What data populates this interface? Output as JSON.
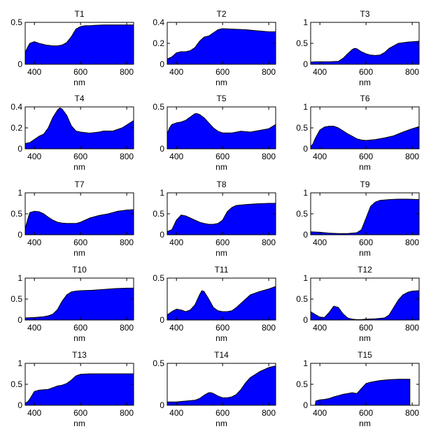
{
  "figure": {
    "fill_color": "#0000ff",
    "edge_color": "#000000",
    "background": "#ffffff"
  },
  "chart_data": [
    {
      "type": "area",
      "title": "T1",
      "xlabel": "nm",
      "ylabel": "",
      "xlim": [
        360,
        830
      ],
      "ylim": [
        0,
        0.5
      ],
      "xticks": [
        400,
        600,
        800
      ],
      "yticks": [
        0,
        0.5
      ],
      "ytick_labels": [
        "0",
        "0.5"
      ],
      "x": [
        360,
        370,
        380,
        400,
        420,
        450,
        480,
        500,
        520,
        540,
        560,
        580,
        600,
        620,
        640,
        660,
        700,
        750,
        800,
        830
      ],
      "values": [
        0.14,
        0.2,
        0.25,
        0.27,
        0.25,
        0.23,
        0.22,
        0.22,
        0.23,
        0.26,
        0.33,
        0.42,
        0.45,
        0.46,
        0.46,
        0.465,
        0.47,
        0.47,
        0.47,
        0.47
      ]
    },
    {
      "type": "area",
      "title": "T2",
      "xlabel": "nm",
      "ylabel": "",
      "xlim": [
        360,
        830
      ],
      "ylim": [
        0,
        0.4
      ],
      "xticks": [
        400,
        600,
        800
      ],
      "yticks": [
        0,
        0.2,
        0.4
      ],
      "ytick_labels": [
        "0",
        "0.2",
        "0.4"
      ],
      "x": [
        360,
        380,
        400,
        420,
        440,
        460,
        480,
        500,
        520,
        540,
        560,
        580,
        600,
        650,
        700,
        750,
        800,
        830
      ],
      "values": [
        0.05,
        0.07,
        0.11,
        0.12,
        0.12,
        0.13,
        0.16,
        0.22,
        0.26,
        0.27,
        0.3,
        0.33,
        0.34,
        0.335,
        0.33,
        0.32,
        0.31,
        0.31
      ]
    },
    {
      "type": "area",
      "title": "T3",
      "xlabel": "nm",
      "ylabel": "",
      "xlim": [
        360,
        830
      ],
      "ylim": [
        0,
        1
      ],
      "xticks": [
        400,
        600,
        800
      ],
      "yticks": [
        0,
        0.5,
        1
      ],
      "ytick_labels": [
        "0",
        "0.5",
        "1"
      ],
      "x": [
        360,
        380,
        400,
        440,
        480,
        500,
        520,
        540,
        550,
        560,
        580,
        600,
        620,
        640,
        660,
        680,
        700,
        740,
        780,
        830
      ],
      "values": [
        0.05,
        0.06,
        0.06,
        0.06,
        0.07,
        0.14,
        0.25,
        0.35,
        0.38,
        0.37,
        0.3,
        0.25,
        0.22,
        0.21,
        0.22,
        0.28,
        0.38,
        0.5,
        0.53,
        0.55
      ]
    },
    {
      "type": "area",
      "title": "T4",
      "xlabel": "nm",
      "ylabel": "",
      "xlim": [
        360,
        830
      ],
      "ylim": [
        0,
        0.4
      ],
      "xticks": [
        400,
        600,
        800
      ],
      "yticks": [
        0,
        0.2,
        0.4
      ],
      "ytick_labels": [
        "0",
        "0.2",
        "0.4"
      ],
      "x": [
        360,
        380,
        400,
        420,
        440,
        460,
        480,
        500,
        510,
        520,
        540,
        560,
        580,
        600,
        640,
        680,
        700,
        740,
        780,
        830
      ],
      "values": [
        0.05,
        0.06,
        0.09,
        0.12,
        0.14,
        0.2,
        0.3,
        0.37,
        0.39,
        0.38,
        0.32,
        0.22,
        0.17,
        0.16,
        0.15,
        0.16,
        0.17,
        0.17,
        0.2,
        0.27
      ]
    },
    {
      "type": "area",
      "title": "T5",
      "xlabel": "nm",
      "ylabel": "",
      "xlim": [
        360,
        830
      ],
      "ylim": [
        0,
        0.5
      ],
      "xticks": [
        400,
        600,
        800
      ],
      "yticks": [
        0,
        0.5
      ],
      "ytick_labels": [
        "0",
        "0.5"
      ],
      "x": [
        360,
        370,
        380,
        400,
        420,
        440,
        460,
        480,
        490,
        500,
        520,
        540,
        560,
        580,
        600,
        640,
        680,
        720,
        760,
        800,
        830
      ],
      "values": [
        0.18,
        0.25,
        0.29,
        0.31,
        0.32,
        0.34,
        0.38,
        0.42,
        0.42,
        0.41,
        0.37,
        0.31,
        0.25,
        0.21,
        0.19,
        0.19,
        0.21,
        0.2,
        0.22,
        0.24,
        0.29
      ]
    },
    {
      "type": "area",
      "title": "T6",
      "xlabel": "nm",
      "ylabel": "",
      "xlim": [
        360,
        830
      ],
      "ylim": [
        0,
        1
      ],
      "xticks": [
        400,
        600,
        800
      ],
      "yticks": [
        0,
        0.5,
        1
      ],
      "ytick_labels": [
        "0",
        "0.5",
        "1"
      ],
      "x": [
        360,
        370,
        380,
        400,
        420,
        440,
        460,
        480,
        500,
        520,
        540,
        560,
        580,
        600,
        640,
        680,
        720,
        760,
        800,
        830
      ],
      "values": [
        0.05,
        0.12,
        0.25,
        0.45,
        0.52,
        0.54,
        0.54,
        0.5,
        0.43,
        0.36,
        0.3,
        0.24,
        0.21,
        0.2,
        0.22,
        0.26,
        0.31,
        0.4,
        0.48,
        0.53
      ]
    },
    {
      "type": "area",
      "title": "T7",
      "xlabel": "nm",
      "ylabel": "",
      "xlim": [
        360,
        830
      ],
      "ylim": [
        0,
        1
      ],
      "xticks": [
        400,
        600,
        800
      ],
      "yticks": [
        0,
        0.5,
        1
      ],
      "ytick_labels": [
        "0",
        "0.5",
        "1"
      ],
      "x": [
        360,
        370,
        380,
        400,
        420,
        440,
        460,
        480,
        500,
        520,
        540,
        560,
        580,
        600,
        640,
        680,
        720,
        760,
        800,
        830
      ],
      "values": [
        0.15,
        0.35,
        0.53,
        0.56,
        0.55,
        0.5,
        0.42,
        0.35,
        0.3,
        0.28,
        0.27,
        0.27,
        0.27,
        0.3,
        0.4,
        0.46,
        0.5,
        0.56,
        0.59,
        0.6
      ]
    },
    {
      "type": "area",
      "title": "T8",
      "xlabel": "nm",
      "ylabel": "",
      "xlim": [
        360,
        830
      ],
      "ylim": [
        0,
        1
      ],
      "xticks": [
        400,
        600,
        800
      ],
      "yticks": [
        0,
        0.5,
        1
      ],
      "ytick_labels": [
        "0",
        "0.5",
        "1"
      ],
      "x": [
        360,
        380,
        400,
        420,
        440,
        460,
        480,
        500,
        520,
        540,
        560,
        580,
        600,
        620,
        640,
        660,
        700,
        750,
        800,
        830
      ],
      "values": [
        0.08,
        0.12,
        0.35,
        0.47,
        0.45,
        0.4,
        0.35,
        0.3,
        0.27,
        0.25,
        0.25,
        0.27,
        0.35,
        0.55,
        0.65,
        0.7,
        0.72,
        0.74,
        0.75,
        0.75
      ]
    },
    {
      "type": "area",
      "title": "T9",
      "xlabel": "nm",
      "ylabel": "",
      "xlim": [
        360,
        830
      ],
      "ylim": [
        0,
        1
      ],
      "xticks": [
        400,
        600,
        800
      ],
      "yticks": [
        0,
        0.5,
        1
      ],
      "ytick_labels": [
        "0",
        "0.5",
        "1"
      ],
      "x": [
        360,
        400,
        440,
        480,
        520,
        560,
        580,
        600,
        620,
        640,
        660,
        700,
        740,
        780,
        830
      ],
      "values": [
        0.07,
        0.06,
        0.04,
        0.03,
        0.03,
        0.05,
        0.12,
        0.4,
        0.68,
        0.78,
        0.82,
        0.84,
        0.85,
        0.85,
        0.84
      ]
    },
    {
      "type": "area",
      "title": "T10",
      "xlabel": "nm",
      "ylabel": "",
      "xlim": [
        360,
        830
      ],
      "ylim": [
        0,
        1
      ],
      "xticks": [
        400,
        600,
        800
      ],
      "yticks": [
        0,
        0.5,
        1
      ],
      "ytick_labels": [
        "0",
        "0.5",
        "1"
      ],
      "x": [
        360,
        400,
        440,
        460,
        480,
        500,
        520,
        540,
        560,
        580,
        600,
        650,
        700,
        750,
        800,
        830
      ],
      "values": [
        0.05,
        0.06,
        0.08,
        0.1,
        0.14,
        0.25,
        0.45,
        0.6,
        0.67,
        0.69,
        0.7,
        0.71,
        0.73,
        0.75,
        0.76,
        0.76
      ]
    },
    {
      "type": "area",
      "title": "T11",
      "xlabel": "nm",
      "ylabel": "",
      "xlim": [
        360,
        830
      ],
      "ylim": [
        0,
        0.5
      ],
      "xticks": [
        400,
        600,
        800
      ],
      "yticks": [
        0,
        0.5
      ],
      "ytick_labels": [
        "0",
        "0.5"
      ],
      "x": [
        360,
        380,
        400,
        420,
        440,
        460,
        480,
        500,
        510,
        520,
        540,
        560,
        580,
        600,
        620,
        640,
        660,
        680,
        700,
        720,
        760,
        800,
        830
      ],
      "values": [
        0.06,
        0.1,
        0.13,
        0.12,
        0.1,
        0.12,
        0.18,
        0.3,
        0.35,
        0.34,
        0.25,
        0.15,
        0.11,
        0.1,
        0.1,
        0.11,
        0.15,
        0.2,
        0.25,
        0.3,
        0.34,
        0.37,
        0.4
      ]
    },
    {
      "type": "area",
      "title": "T12",
      "xlabel": "nm",
      "ylabel": "",
      "xlim": [
        360,
        830
      ],
      "ylim": [
        0,
        1
      ],
      "xticks": [
        400,
        600,
        800
      ],
      "yticks": [
        0,
        0.5,
        1
      ],
      "ytick_labels": [
        "0",
        "0.5",
        "1"
      ],
      "x": [
        360,
        380,
        400,
        420,
        440,
        460,
        480,
        500,
        520,
        540,
        560,
        580,
        600,
        640,
        680,
        700,
        720,
        740,
        760,
        780,
        800,
        830
      ],
      "values": [
        0.2,
        0.13,
        0.07,
        0.06,
        0.18,
        0.33,
        0.3,
        0.15,
        0.05,
        0.02,
        0.01,
        0.01,
        0.02,
        0.03,
        0.05,
        0.12,
        0.3,
        0.48,
        0.6,
        0.66,
        0.69,
        0.7
      ]
    },
    {
      "type": "area",
      "title": "T13",
      "xlabel": "nm",
      "ylabel": "",
      "xlim": [
        360,
        830
      ],
      "ylim": [
        0,
        1
      ],
      "xticks": [
        400,
        600,
        800
      ],
      "yticks": [
        0,
        0.5,
        1
      ],
      "ytick_labels": [
        "0",
        "0.5",
        "1"
      ],
      "x": [
        360,
        370,
        380,
        400,
        420,
        440,
        460,
        480,
        500,
        520,
        540,
        560,
        580,
        600,
        640,
        700,
        760,
        830
      ],
      "values": [
        0.05,
        0.08,
        0.15,
        0.33,
        0.36,
        0.37,
        0.38,
        0.42,
        0.46,
        0.48,
        0.52,
        0.6,
        0.7,
        0.74,
        0.75,
        0.75,
        0.75,
        0.75
      ]
    },
    {
      "type": "area",
      "title": "T14",
      "xlabel": "nm",
      "ylabel": "",
      "xlim": [
        360,
        830
      ],
      "ylim": [
        0,
        0.5
      ],
      "xticks": [
        400,
        600,
        800
      ],
      "yticks": [
        0,
        0.5
      ],
      "ytick_labels": [
        "0",
        "0.5"
      ],
      "x": [
        360,
        400,
        440,
        480,
        500,
        520,
        540,
        550,
        560,
        580,
        600,
        620,
        640,
        660,
        680,
        700,
        720,
        760,
        800,
        830
      ],
      "values": [
        0.04,
        0.04,
        0.05,
        0.06,
        0.08,
        0.12,
        0.15,
        0.15,
        0.14,
        0.11,
        0.09,
        0.09,
        0.1,
        0.13,
        0.19,
        0.27,
        0.33,
        0.4,
        0.45,
        0.47
      ]
    },
    {
      "type": "area",
      "title": "T15",
      "xlabel": "nm",
      "ylabel": "",
      "xlim": [
        360,
        830
      ],
      "ylim": [
        0,
        1
      ],
      "xticks": [
        400,
        600,
        800
      ],
      "yticks": [
        0,
        0.5,
        1
      ],
      "ytick_labels": [
        "0",
        "0.5",
        "1"
      ],
      "x": [
        380,
        382,
        400,
        420,
        440,
        460,
        480,
        500,
        520,
        540,
        560,
        580,
        600,
        620,
        640,
        660,
        680,
        700,
        740,
        780,
        790,
        790
      ],
      "values": [
        0,
        0.1,
        0.13,
        0.14,
        0.16,
        0.2,
        0.23,
        0.26,
        0.28,
        0.3,
        0.28,
        0.4,
        0.52,
        0.55,
        0.57,
        0.59,
        0.6,
        0.61,
        0.62,
        0.62,
        0.62,
        0
      ]
    }
  ]
}
